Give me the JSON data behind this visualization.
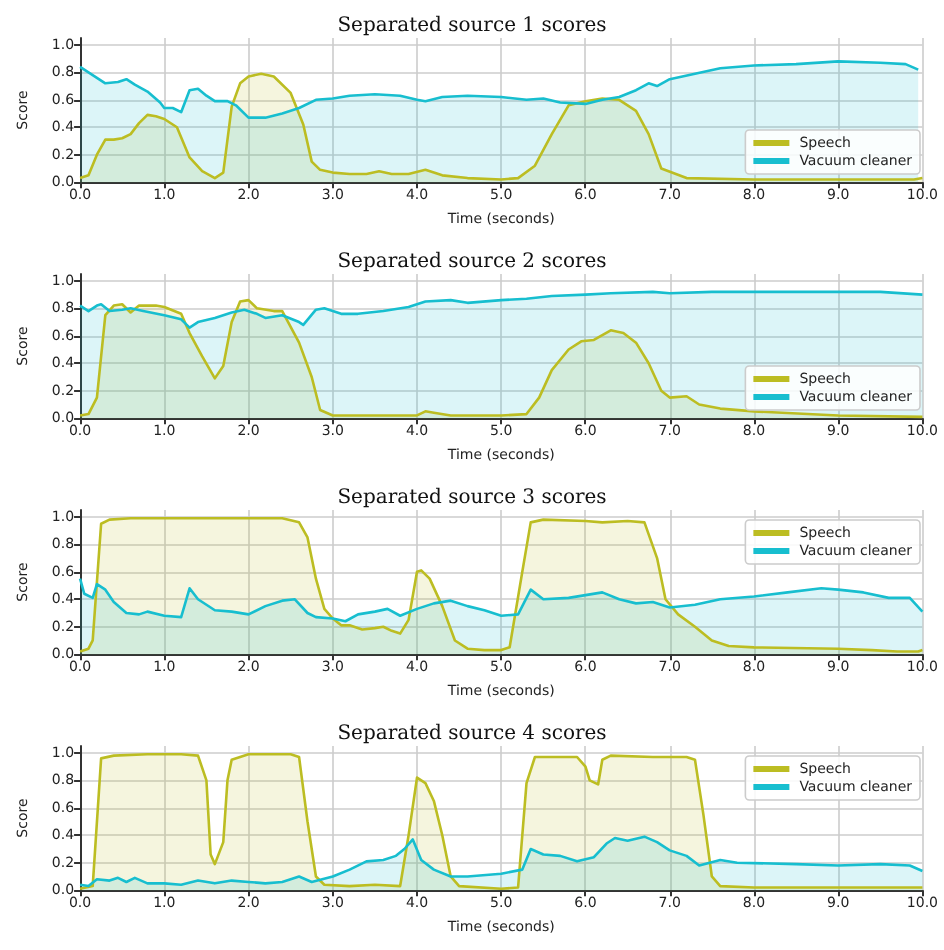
{
  "chart_data": [
    {
      "type": "area",
      "title": "Separated source 1 scores",
      "xlabel": "Time (seconds)",
      "ylabel": "Score",
      "xlim": [
        0,
        10
      ],
      "ylim": [
        0,
        1.05
      ],
      "xticks": [
        {
          "value": 0,
          "label": "0.0"
        },
        {
          "value": 1,
          "label": "1.0"
        },
        {
          "value": 2,
          "label": "2.0"
        },
        {
          "value": 3,
          "label": "3.0"
        },
        {
          "value": 4,
          "label": "4.0"
        },
        {
          "value": 5,
          "label": "5.0"
        },
        {
          "value": 6,
          "label": "6.0"
        },
        {
          "value": 7,
          "label": "7.0"
        },
        {
          "value": 8,
          "label": "8.0"
        },
        {
          "value": 9,
          "label": "9.0"
        },
        {
          "value": 10,
          "label": "10.0"
        }
      ],
      "yticks": [
        {
          "value": 0,
          "label": "0.0"
        },
        {
          "value": 0.2,
          "label": "0.2"
        },
        {
          "value": 0.4,
          "label": "0.4"
        },
        {
          "value": 0.6,
          "label": "0.6"
        },
        {
          "value": 0.8,
          "label": "0.8"
        },
        {
          "value": 1,
          "label": "1.0"
        }
      ],
      "grid": true,
      "legend": "bottom right",
      "series": [
        {
          "name": "Speech",
          "color": "#bcbd22",
          "x": [
            0,
            0.1,
            0.2,
            0.3,
            0.4,
            0.5,
            0.6,
            0.7,
            0.8,
            0.9,
            1.0,
            1.15,
            1.3,
            1.45,
            1.6,
            1.7,
            1.8,
            1.9,
            2.0,
            2.15,
            2.3,
            2.5,
            2.65,
            2.75,
            2.85,
            3.0,
            3.2,
            3.4,
            3.55,
            3.7,
            3.9,
            4.1,
            4.3,
            4.6,
            5.0,
            5.2,
            5.4,
            5.6,
            5.8,
            6.0,
            6.2,
            6.4,
            6.6,
            6.75,
            6.9,
            7.2,
            8.0,
            9.0,
            9.9,
            10.0
          ],
          "values": [
            0.03,
            0.05,
            0.2,
            0.31,
            0.31,
            0.32,
            0.35,
            0.43,
            0.49,
            0.48,
            0.46,
            0.4,
            0.18,
            0.08,
            0.03,
            0.07,
            0.55,
            0.72,
            0.77,
            0.79,
            0.77,
            0.65,
            0.42,
            0.15,
            0.09,
            0.07,
            0.06,
            0.06,
            0.08,
            0.06,
            0.06,
            0.09,
            0.05,
            0.03,
            0.02,
            0.03,
            0.12,
            0.35,
            0.56,
            0.59,
            0.61,
            0.6,
            0.52,
            0.35,
            0.1,
            0.03,
            0.02,
            0.02,
            0.02,
            0.03
          ]
        },
        {
          "name": "Vacuum cleaner",
          "color": "#17becf",
          "x": [
            0,
            0.15,
            0.3,
            0.45,
            0.55,
            0.65,
            0.8,
            0.95,
            1.0,
            1.1,
            1.2,
            1.3,
            1.4,
            1.5,
            1.6,
            1.75,
            1.85,
            2.0,
            2.2,
            2.4,
            2.6,
            2.8,
            3.0,
            3.2,
            3.5,
            3.8,
            4.0,
            4.1,
            4.3,
            4.6,
            5.0,
            5.3,
            5.5,
            5.7,
            6.0,
            6.2,
            6.4,
            6.6,
            6.75,
            6.85,
            7.0,
            7.3,
            7.6,
            8.0,
            8.5,
            9.0,
            9.5,
            9.8,
            9.95
          ],
          "values": [
            0.84,
            0.78,
            0.72,
            0.73,
            0.75,
            0.71,
            0.66,
            0.58,
            0.54,
            0.54,
            0.51,
            0.67,
            0.68,
            0.63,
            0.59,
            0.59,
            0.56,
            0.47,
            0.47,
            0.5,
            0.54,
            0.6,
            0.61,
            0.63,
            0.64,
            0.63,
            0.6,
            0.59,
            0.62,
            0.63,
            0.62,
            0.6,
            0.61,
            0.58,
            0.57,
            0.6,
            0.62,
            0.67,
            0.72,
            0.7,
            0.75,
            0.79,
            0.83,
            0.85,
            0.86,
            0.88,
            0.87,
            0.86,
            0.82
          ]
        }
      ]
    },
    {
      "type": "area",
      "title": "Separated source 2 scores",
      "xlabel": "Time (seconds)",
      "ylabel": "Score",
      "xlim": [
        0,
        10
      ],
      "ylim": [
        0,
        1.05
      ],
      "xticks": [
        {
          "value": 0,
          "label": "0.0"
        },
        {
          "value": 1,
          "label": "1.0"
        },
        {
          "value": 2,
          "label": "2.0"
        },
        {
          "value": 3,
          "label": "3.0"
        },
        {
          "value": 4,
          "label": "4.0"
        },
        {
          "value": 5,
          "label": "5.0"
        },
        {
          "value": 6,
          "label": "6.0"
        },
        {
          "value": 7,
          "label": "7.0"
        },
        {
          "value": 8,
          "label": "8.0"
        },
        {
          "value": 9,
          "label": "9.0"
        },
        {
          "value": 10,
          "label": "10.0"
        }
      ],
      "yticks": [
        {
          "value": 0,
          "label": "0.0"
        },
        {
          "value": 0.2,
          "label": "0.2"
        },
        {
          "value": 0.4,
          "label": "0.4"
        },
        {
          "value": 0.6,
          "label": "0.6"
        },
        {
          "value": 0.8,
          "label": "0.8"
        },
        {
          "value": 1,
          "label": "1.0"
        }
      ],
      "grid": true,
      "legend": "bottom right",
      "series": [
        {
          "name": "Speech",
          "color": "#bcbd22",
          "x": [
            0,
            0.1,
            0.2,
            0.3,
            0.4,
            0.5,
            0.6,
            0.7,
            0.9,
            1.0,
            1.2,
            1.3,
            1.45,
            1.6,
            1.7,
            1.8,
            1.9,
            2.0,
            2.1,
            2.3,
            2.4,
            2.6,
            2.75,
            2.85,
            3.0,
            3.5,
            4.0,
            4.1,
            4.2,
            4.4,
            5.0,
            5.3,
            5.45,
            5.6,
            5.8,
            5.95,
            6.1,
            6.3,
            6.45,
            6.6,
            6.75,
            6.9,
            7.0,
            7.2,
            7.35,
            7.6,
            8.0,
            9.0,
            10.0
          ],
          "values": [
            0.02,
            0.03,
            0.15,
            0.75,
            0.82,
            0.83,
            0.77,
            0.82,
            0.82,
            0.81,
            0.76,
            0.62,
            0.45,
            0.29,
            0.38,
            0.7,
            0.85,
            0.86,
            0.8,
            0.78,
            0.78,
            0.55,
            0.3,
            0.06,
            0.02,
            0.02,
            0.02,
            0.05,
            0.04,
            0.02,
            0.02,
            0.03,
            0.15,
            0.35,
            0.5,
            0.56,
            0.57,
            0.64,
            0.62,
            0.55,
            0.4,
            0.2,
            0.15,
            0.16,
            0.1,
            0.07,
            0.05,
            0.02,
            0.01
          ]
        },
        {
          "name": "Vacuum cleaner",
          "color": "#17becf",
          "x": [
            0,
            0.1,
            0.2,
            0.25,
            0.35,
            0.5,
            0.6,
            0.75,
            1.0,
            1.2,
            1.3,
            1.4,
            1.6,
            1.8,
            1.95,
            2.1,
            2.2,
            2.4,
            2.6,
            2.65,
            2.8,
            2.9,
            3.1,
            3.3,
            3.6,
            3.9,
            4.1,
            4.4,
            4.6,
            5.0,
            5.3,
            5.6,
            6.0,
            6.3,
            6.8,
            7.0,
            7.5,
            8.0,
            8.5,
            9.0,
            9.5,
            10.0
          ],
          "values": [
            0.82,
            0.78,
            0.82,
            0.83,
            0.78,
            0.79,
            0.8,
            0.78,
            0.75,
            0.72,
            0.66,
            0.7,
            0.73,
            0.77,
            0.79,
            0.76,
            0.73,
            0.75,
            0.7,
            0.68,
            0.79,
            0.8,
            0.76,
            0.76,
            0.78,
            0.81,
            0.85,
            0.86,
            0.84,
            0.86,
            0.87,
            0.89,
            0.9,
            0.91,
            0.92,
            0.91,
            0.92,
            0.92,
            0.92,
            0.92,
            0.92,
            0.9
          ]
        }
      ]
    },
    {
      "type": "area",
      "title": "Separated source 3 scores",
      "xlabel": "Time (seconds)",
      "ylabel": "Score",
      "xlim": [
        0,
        10
      ],
      "ylim": [
        0,
        1.05
      ],
      "xticks": [
        {
          "value": 0,
          "label": "0.0"
        },
        {
          "value": 1,
          "label": "1.0"
        },
        {
          "value": 2,
          "label": "2.0"
        },
        {
          "value": 3,
          "label": "3.0"
        },
        {
          "value": 4,
          "label": "4.0"
        },
        {
          "value": 5,
          "label": "5.0"
        },
        {
          "value": 6,
          "label": "6.0"
        },
        {
          "value": 7,
          "label": "7.0"
        },
        {
          "value": 8,
          "label": "8.0"
        },
        {
          "value": 9,
          "label": "9.0"
        },
        {
          "value": 10,
          "label": "10.0"
        }
      ],
      "yticks": [
        {
          "value": 0,
          "label": "0.0"
        },
        {
          "value": 0.2,
          "label": "0.2"
        },
        {
          "value": 0.4,
          "label": "0.4"
        },
        {
          "value": 0.6,
          "label": "0.6"
        },
        {
          "value": 0.8,
          "label": "0.8"
        },
        {
          "value": 1,
          "label": "1.0"
        }
      ],
      "grid": true,
      "legend": "top right",
      "series": [
        {
          "name": "Speech",
          "color": "#bcbd22",
          "x": [
            0,
            0.1,
            0.15,
            0.25,
            0.35,
            0.6,
            1.0,
            1.5,
            2.0,
            2.4,
            2.6,
            2.7,
            2.8,
            2.9,
            3.0,
            3.1,
            3.2,
            3.35,
            3.5,
            3.6,
            3.7,
            3.8,
            3.9,
            4.0,
            4.05,
            4.15,
            4.3,
            4.45,
            4.6,
            4.8,
            5.0,
            5.1,
            5.25,
            5.35,
            5.5,
            6.0,
            6.2,
            6.5,
            6.7,
            6.85,
            6.95,
            7.1,
            7.3,
            7.5,
            7.7,
            8.0,
            9.0,
            9.4,
            9.7,
            9.95,
            10.0
          ],
          "values": [
            0.02,
            0.04,
            0.1,
            0.95,
            0.98,
            0.99,
            0.99,
            0.99,
            0.99,
            0.99,
            0.96,
            0.85,
            0.55,
            0.33,
            0.26,
            0.21,
            0.21,
            0.18,
            0.19,
            0.2,
            0.17,
            0.15,
            0.25,
            0.6,
            0.61,
            0.55,
            0.35,
            0.1,
            0.04,
            0.03,
            0.03,
            0.05,
            0.6,
            0.96,
            0.98,
            0.97,
            0.96,
            0.97,
            0.96,
            0.7,
            0.4,
            0.29,
            0.2,
            0.1,
            0.06,
            0.05,
            0.04,
            0.03,
            0.02,
            0.02,
            0.03
          ]
        },
        {
          "name": "Vacuum cleaner",
          "color": "#17becf",
          "x": [
            0,
            0.05,
            0.15,
            0.2,
            0.3,
            0.4,
            0.55,
            0.7,
            0.8,
            1.0,
            1.2,
            1.3,
            1.4,
            1.6,
            1.8,
            2.0,
            2.2,
            2.4,
            2.55,
            2.7,
            2.8,
            3.0,
            3.15,
            3.3,
            3.5,
            3.65,
            3.8,
            4.0,
            4.2,
            4.4,
            4.6,
            4.8,
            5.0,
            5.2,
            5.35,
            5.5,
            5.8,
            6.0,
            6.2,
            6.4,
            6.6,
            6.8,
            7.0,
            7.3,
            7.6,
            8.0,
            8.4,
            8.8,
            9.0,
            9.3,
            9.6,
            9.85,
            10.0
          ],
          "values": [
            0.55,
            0.44,
            0.41,
            0.51,
            0.47,
            0.38,
            0.3,
            0.29,
            0.31,
            0.28,
            0.27,
            0.48,
            0.4,
            0.32,
            0.31,
            0.29,
            0.35,
            0.39,
            0.4,
            0.3,
            0.27,
            0.26,
            0.24,
            0.29,
            0.31,
            0.33,
            0.28,
            0.33,
            0.37,
            0.39,
            0.35,
            0.32,
            0.28,
            0.29,
            0.47,
            0.4,
            0.41,
            0.43,
            0.45,
            0.4,
            0.37,
            0.38,
            0.34,
            0.36,
            0.4,
            0.42,
            0.45,
            0.48,
            0.47,
            0.45,
            0.41,
            0.41,
            0.31
          ]
        }
      ]
    },
    {
      "type": "area",
      "title": "Separated source 4 scores",
      "xlabel": "Time (seconds)",
      "ylabel": "Score",
      "xlim": [
        0,
        10
      ],
      "ylim": [
        0,
        1.05
      ],
      "xticks": [
        {
          "value": 0,
          "label": "0.0"
        },
        {
          "value": 1,
          "label": "1.0"
        },
        {
          "value": 2,
          "label": "2.0"
        },
        {
          "value": 3,
          "label": "3.0"
        },
        {
          "value": 4,
          "label": "4.0"
        },
        {
          "value": 5,
          "label": "5.0"
        },
        {
          "value": 6,
          "label": "6.0"
        },
        {
          "value": 7,
          "label": "7.0"
        },
        {
          "value": 8,
          "label": "8.0"
        },
        {
          "value": 9,
          "label": "9.0"
        },
        {
          "value": 10,
          "label": "10.0"
        }
      ],
      "yticks": [
        {
          "value": 0,
          "label": "0.0"
        },
        {
          "value": 0.2,
          "label": "0.2"
        },
        {
          "value": 0.4,
          "label": "0.4"
        },
        {
          "value": 0.6,
          "label": "0.6"
        },
        {
          "value": 0.8,
          "label": "0.8"
        },
        {
          "value": 1,
          "label": "1.0"
        }
      ],
      "grid": true,
      "legend": "top right",
      "series": [
        {
          "name": "Speech",
          "color": "#bcbd22",
          "x": [
            0,
            0.15,
            0.25,
            0.4,
            0.8,
            1.2,
            1.4,
            1.5,
            1.55,
            1.6,
            1.7,
            1.75,
            1.8,
            2.0,
            2.5,
            2.6,
            2.7,
            2.8,
            2.9,
            3.2,
            3.5,
            3.8,
            3.9,
            4.0,
            4.1,
            4.2,
            4.3,
            4.4,
            4.5,
            5.0,
            5.2,
            5.3,
            5.4,
            5.6,
            5.9,
            6.0,
            6.05,
            6.15,
            6.2,
            6.3,
            6.8,
            7.2,
            7.3,
            7.4,
            7.5,
            7.6,
            8.0,
            9.0,
            10.0
          ],
          "values": [
            0.01,
            0.03,
            0.96,
            0.98,
            0.99,
            0.99,
            0.98,
            0.8,
            0.26,
            0.19,
            0.35,
            0.8,
            0.95,
            0.99,
            0.99,
            0.97,
            0.5,
            0.1,
            0.04,
            0.03,
            0.04,
            0.03,
            0.4,
            0.82,
            0.78,
            0.65,
            0.4,
            0.1,
            0.03,
            0.01,
            0.02,
            0.78,
            0.97,
            0.97,
            0.97,
            0.9,
            0.8,
            0.77,
            0.95,
            0.98,
            0.97,
            0.97,
            0.95,
            0.55,
            0.1,
            0.03,
            0.02,
            0.02,
            0.02
          ]
        },
        {
          "name": "Vacuum cleaner",
          "color": "#17becf",
          "x": [
            0,
            0.1,
            0.2,
            0.35,
            0.45,
            0.55,
            0.65,
            0.8,
            1.0,
            1.2,
            1.4,
            1.6,
            1.8,
            2.0,
            2.2,
            2.4,
            2.6,
            2.75,
            3.0,
            3.2,
            3.4,
            3.6,
            3.75,
            3.85,
            3.95,
            4.05,
            4.2,
            4.4,
            4.6,
            5.0,
            5.25,
            5.35,
            5.5,
            5.7,
            5.9,
            6.1,
            6.25,
            6.35,
            6.5,
            6.7,
            6.85,
            7.0,
            7.2,
            7.35,
            7.6,
            7.8,
            8.5,
            9.0,
            9.5,
            9.85,
            10.0
          ],
          "values": [
            0.04,
            0.03,
            0.08,
            0.07,
            0.09,
            0.06,
            0.09,
            0.05,
            0.05,
            0.04,
            0.07,
            0.05,
            0.07,
            0.06,
            0.05,
            0.06,
            0.1,
            0.06,
            0.1,
            0.15,
            0.21,
            0.22,
            0.25,
            0.3,
            0.37,
            0.22,
            0.15,
            0.1,
            0.1,
            0.12,
            0.15,
            0.3,
            0.26,
            0.25,
            0.21,
            0.24,
            0.34,
            0.38,
            0.36,
            0.39,
            0.35,
            0.29,
            0.25,
            0.18,
            0.22,
            0.2,
            0.19,
            0.18,
            0.19,
            0.18,
            0.14
          ]
        }
      ]
    }
  ]
}
